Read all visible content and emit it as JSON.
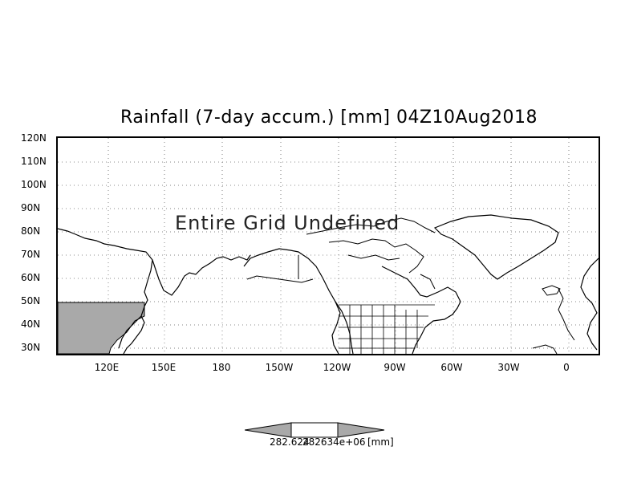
{
  "title": "Rainfall (7-day accum.) [mm] 04Z10Aug2018",
  "message": "Entire Grid Undefined",
  "y_axis_labels": [
    "120N",
    "110N",
    "100N",
    "90N",
    "80N",
    "70N",
    "60N",
    "50N",
    "40N",
    "30N"
  ],
  "x_axis_labels": [
    "120E",
    "150E",
    "180",
    "150W",
    "120W",
    "90W",
    "60W",
    "30W",
    "0"
  ],
  "colorbar": {
    "labels": [
      "282.624",
      "282634e+06"
    ],
    "unit": "[mm]"
  },
  "colors": {
    "land_fill": "#a9a9a9",
    "coast": "#000000",
    "grid": "#888888"
  }
}
